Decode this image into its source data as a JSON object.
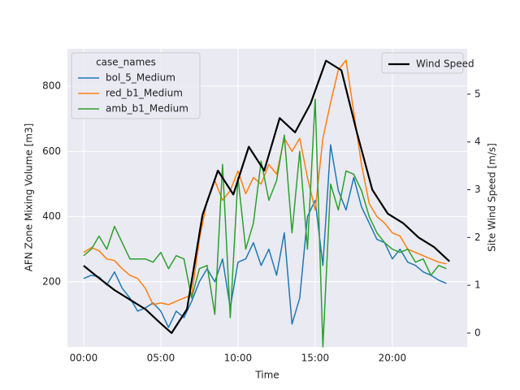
{
  "chart_data": {
    "type": "line",
    "xlabel": "Time",
    "ylabel": "AFN Zone Mixing Volume [m3]",
    "y2label": "Site Wind Speed [m/s]",
    "legend_title": "case_names",
    "legend_loc": "upper left",
    "legend2_loc": "upper right",
    "grid": true,
    "xlim": [
      -1.05,
      24.85
    ],
    "ylim": [
      0,
      915
    ],
    "y2lim": [
      -0.29,
      5.95
    ],
    "xticks": [
      {
        "value": 0,
        "label": "00:00"
      },
      {
        "value": 5,
        "label": "05:00"
      },
      {
        "value": 10,
        "label": "10:00"
      },
      {
        "value": 15,
        "label": "15:00"
      },
      {
        "value": 20,
        "label": "20:00"
      }
    ],
    "yticks": [
      200,
      400,
      600,
      800
    ],
    "y2ticks": [
      0,
      1,
      2,
      3,
      4,
      5
    ],
    "x": [
      0,
      0.5,
      1,
      1.5,
      2,
      2.5,
      3,
      3.5,
      4,
      4.5,
      5,
      5.5,
      6,
      6.5,
      7,
      7.5,
      8,
      8.5,
      9,
      9.5,
      10,
      10.5,
      11,
      11.5,
      12,
      12.5,
      13,
      13.5,
      14,
      14.5,
      15,
      15.5,
      16,
      16.5,
      17,
      17.5,
      18,
      18.5,
      19,
      19.5,
      20,
      20.5,
      21,
      21.5,
      22,
      22.5,
      23,
      23.5
    ],
    "series": [
      {
        "name": "bol_5_Medium",
        "color": "#1f77b4",
        "values": [
          210,
          220,
          215,
          190,
          230,
          180,
          150,
          110,
          120,
          135,
          110,
          60,
          110,
          90,
          140,
          200,
          240,
          200,
          270,
          120,
          260,
          270,
          320,
          250,
          300,
          220,
          350,
          70,
          150,
          400,
          450,
          250,
          620,
          480,
          420,
          520,
          430,
          380,
          330,
          320,
          270,
          300,
          260,
          250,
          230,
          220,
          205,
          195
        ]
      },
      {
        "name": "red_b1_Medium",
        "color": "#ff7f0e",
        "values": [
          290,
          305,
          295,
          270,
          265,
          240,
          220,
          210,
          180,
          130,
          135,
          130,
          140,
          150,
          160,
          330,
          450,
          510,
          450,
          480,
          540,
          470,
          520,
          500,
          560,
          530,
          640,
          600,
          640,
          520,
          420,
          640,
          750,
          850,
          880,
          720,
          560,
          440,
          400,
          380,
          350,
          340,
          300,
          290,
          280,
          270,
          260,
          255
        ]
      },
      {
        "name": "amb_b1_Medium",
        "color": "#2ca02c",
        "values": [
          280,
          300,
          340,
          300,
          370,
          320,
          270,
          270,
          270,
          260,
          290,
          240,
          280,
          270,
          150,
          240,
          250,
          100,
          560,
          90,
          520,
          300,
          380,
          570,
          450,
          510,
          650,
          350,
          600,
          300,
          760,
          0,
          500,
          420,
          540,
          530,
          480,
          400,
          350,
          320,
          300,
          290,
          300,
          260,
          270,
          220,
          250,
          240
        ]
      },
      {
        "name": "Wind Speed",
        "color": "#000000",
        "axis": "y2",
        "x": [
          0,
          1,
          2,
          3,
          4,
          5,
          5.7,
          6.7,
          7.7,
          8.7,
          9.7,
          10.7,
          11.7,
          12.7,
          13.7,
          14.7,
          15.7,
          16.7,
          17.7,
          18.7,
          19.7,
          20.7,
          21.7,
          22.7,
          23.7
        ],
        "values": [
          1.41,
          1.15,
          0.9,
          0.7,
          0.5,
          0.2,
          0.0,
          0.5,
          2.47,
          3.4,
          2.9,
          3.9,
          3.4,
          4.5,
          4.2,
          4.8,
          5.7,
          5.5,
          4.2,
          3.0,
          2.5,
          2.3,
          2.0,
          1.8,
          1.5
        ]
      }
    ]
  }
}
